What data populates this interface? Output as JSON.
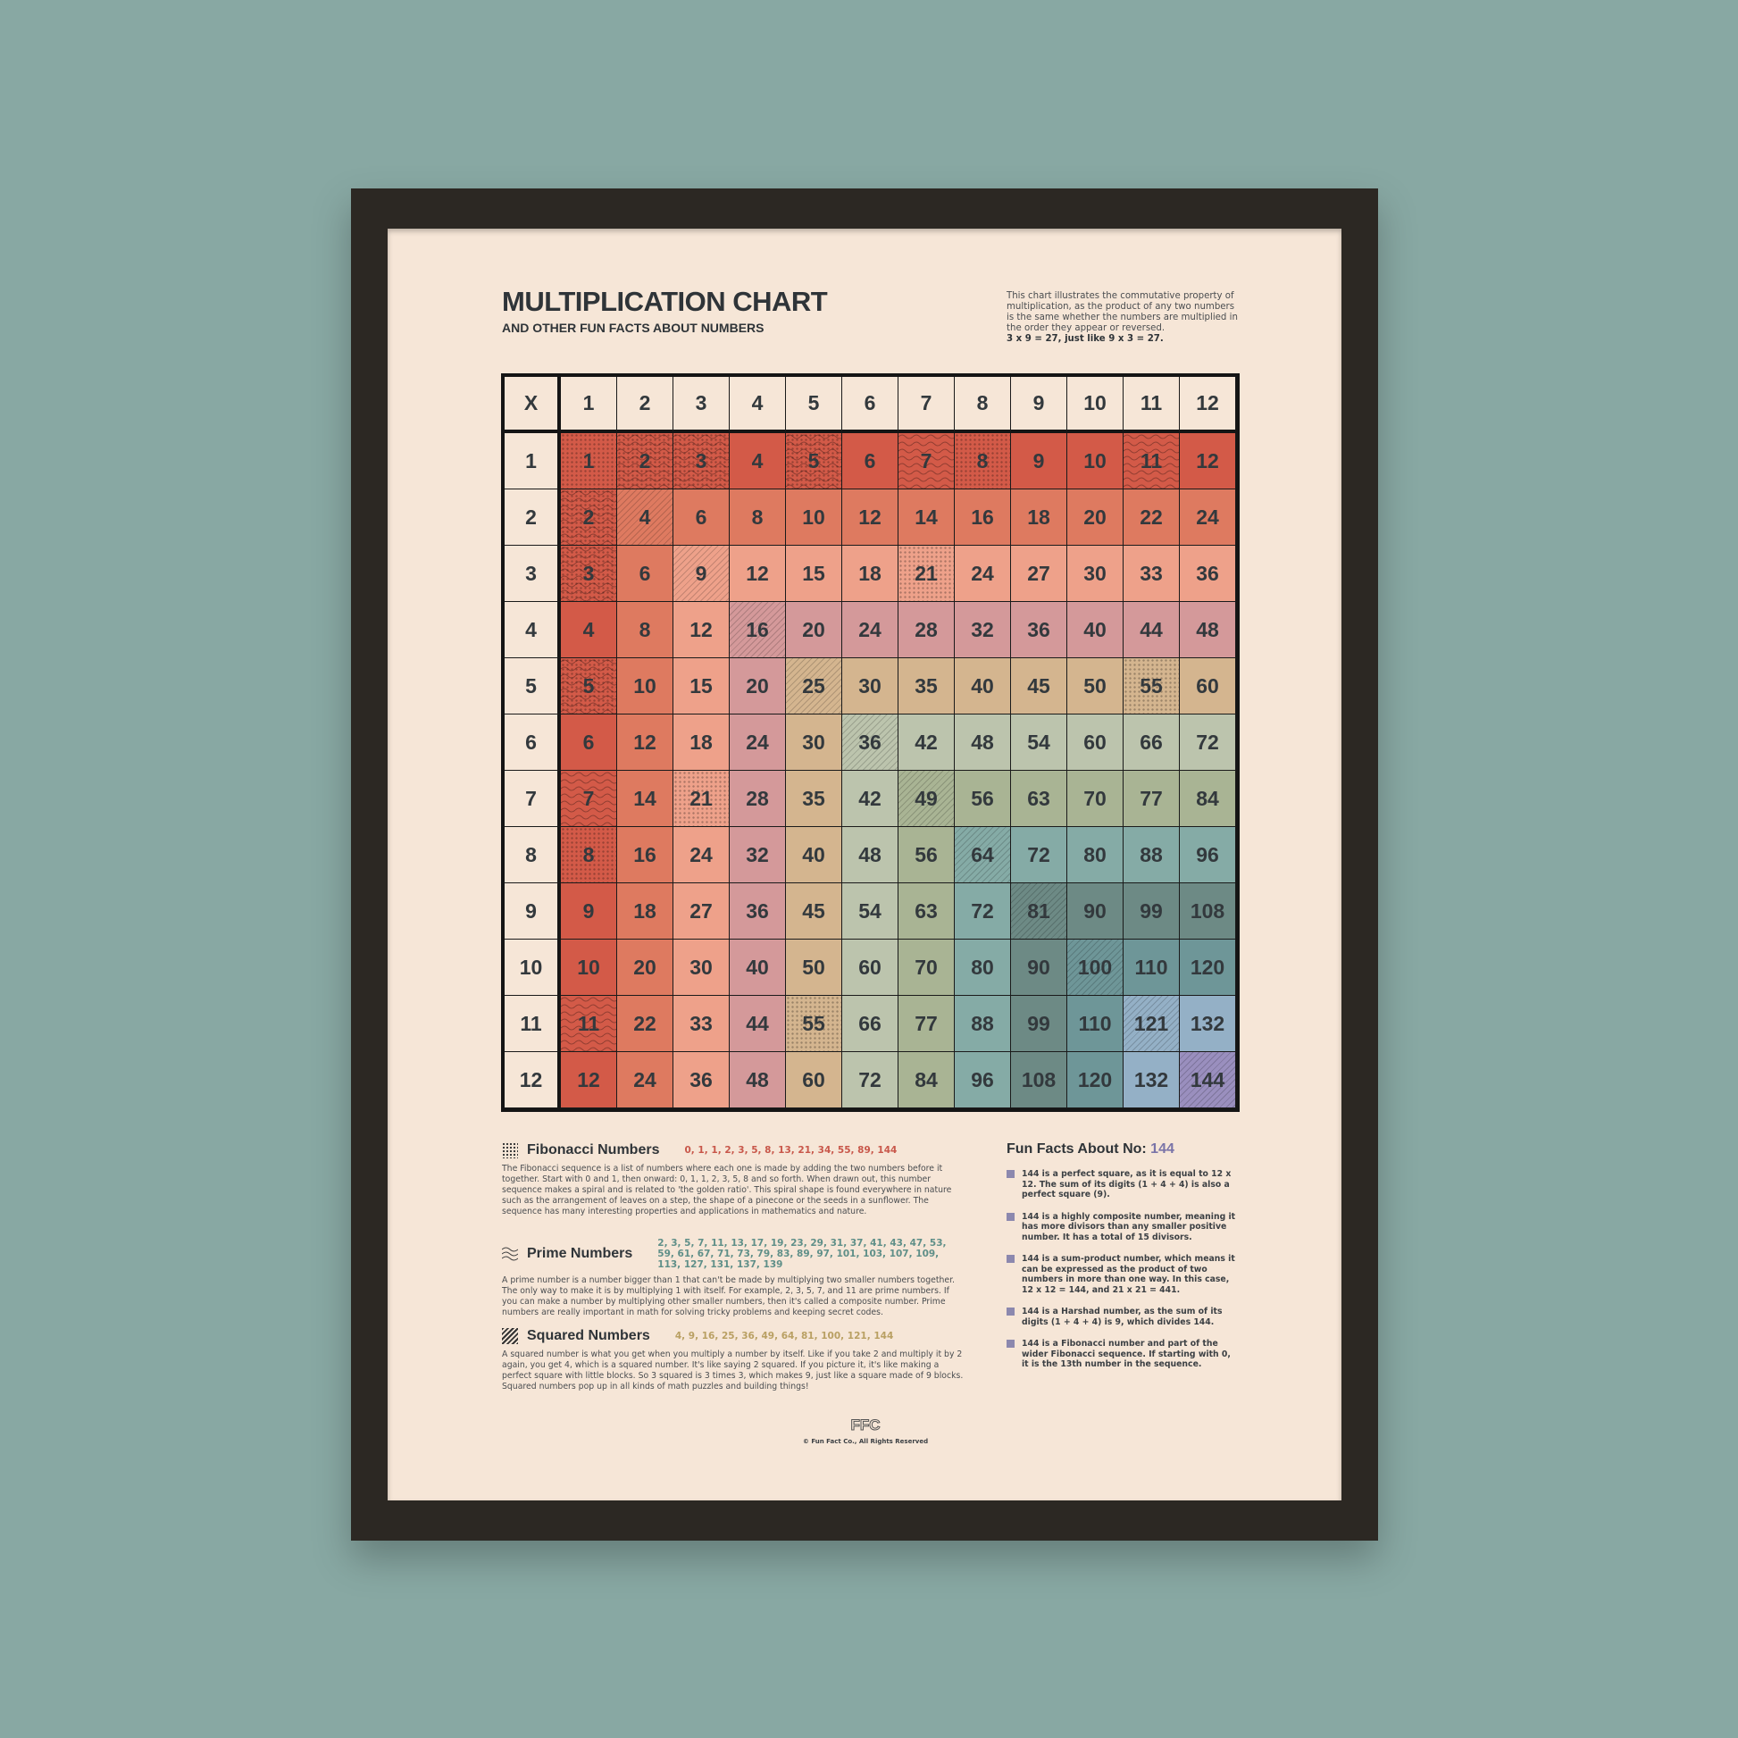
{
  "header": {
    "title": "MULTIPLICATION CHART",
    "subtitle": "AND OTHER FUN FACTS ABOUT NUMBERS",
    "intro": "This chart illustrates the commutative property of multiplication, as the product of any two numbers is the same whether the numbers are multiplied in the order they appear or reversed.",
    "intro_example": "3 x 9 = 27, just like 9 x 3 = 27."
  },
  "table": {
    "corner": "X",
    "factors": [
      1,
      2,
      3,
      4,
      5,
      6,
      7,
      8,
      9,
      10,
      11,
      12
    ],
    "band_colors": [
      "#d35a48",
      "#de7a60",
      "#eea18a",
      "#d4999a",
      "#d4b58f",
      "#bcc4ad",
      "#a9b494",
      "#85aba6",
      "#6d8a85",
      "#6e9698",
      "#94b0c6",
      "#9a8fbe"
    ],
    "header_color": "#f6e6d7",
    "pattern_legend": {
      "fibonacci": "dots",
      "prime": "waves",
      "squared": "diagonal-hatch"
    }
  },
  "sections": {
    "fibonacci": {
      "title": "Fibonacci Numbers",
      "icon": "dots-pattern-icon",
      "list": "0, 1, 1, 2, 3, 5, 8, 13, 21, 34, 55, 89, 144",
      "list_color": "#c8574a",
      "body": "The Fibonacci sequence is a list of numbers where each one is made by adding the two numbers before it together. Start with 0 and 1, then onward: 0, 1, 1, 2, 3, 5, 8 and so forth. When drawn out, this number sequence makes a spiral and is related to 'the golden ratio'. This spiral shape is found everywhere in nature such as the arrangement of leaves on a step, the shape of a pinecone or the seeds in a sunflower. The sequence has many interesting properties and applications in mathematics and nature."
    },
    "prime": {
      "title": "Prime Numbers",
      "icon": "waves-pattern-icon",
      "list": "2, 3, 5, 7, 11, 13, 17, 19, 23, 29, 31, 37, 41, 43, 47, 53, 59, 61, 67, 71, 73, 79, 83, 89, 97, 101, 103, 107, 109, 113, 127, 131, 137, 139",
      "list_color": "#5f8f88",
      "body": "A prime number is a number bigger than 1 that can't be made by multiplying two smaller numbers together. The only way to make it is by multiplying 1 with itself. For example, 2, 3, 5, 7, and 11 are prime numbers. If you can make a number by multiplying other smaller numbers, then it's called a composite number. Prime numbers are really important in math for solving tricky problems and keeping secret codes."
    },
    "squared": {
      "title": "Squared Numbers",
      "icon": "hatch-pattern-icon",
      "list": "4, 9, 16, 25, 36, 49, 64, 81, 100, 121, 144",
      "list_color": "#b9a063",
      "body": "A squared number is what you get when you multiply a number by itself. Like if you take 2 and multiply it by 2 again, you get 4, which is a squared number. It's like saying 2 squared. If you picture it, it's like making a perfect square with little blocks. So 3 squared is 3 times 3, which makes 9, just like a square made of 9 blocks. Squared numbers pop up in all kinds of math puzzles and building things!"
    }
  },
  "fun_facts": {
    "title": "Fun Facts About No:",
    "number": "144",
    "items": [
      "144 is a perfect square, as it is equal to 12 x 12. The sum of its digits (1 + 4 + 4) is also a perfect square (9).",
      "144 is a highly composite number, meaning it has more divisors than any smaller positive number. It has a total of 15 divisors.",
      "144 is a sum-product number, which means it can be expressed as the product of two numbers in more than one way. In this case, 12 x 12 = 144, and 21 x 21 = 441.",
      "144 is a Harshad number, as the sum of its digits (1 + 4 + 4) is 9, which divides 144.",
      "144 is a Fibonacci number and part of the wider Fibonacci sequence. If starting with 0, it is the 13th number in the sequence."
    ]
  },
  "footer": {
    "logo": "FFC",
    "copyright": "© Fun Fact Co., All Rights Reserved"
  }
}
